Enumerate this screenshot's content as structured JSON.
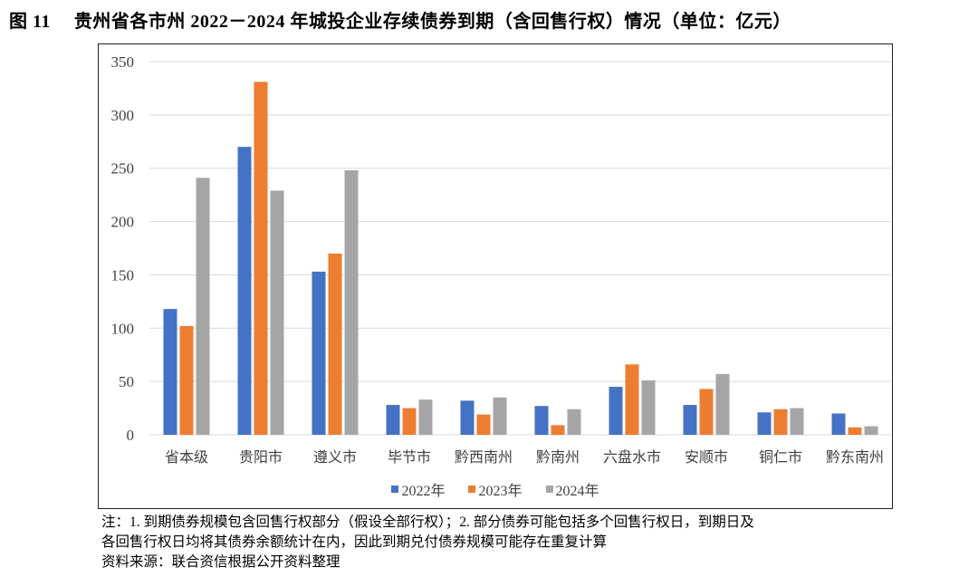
{
  "figure": {
    "label": "图 11",
    "title": "贵州省各市州 2022－2024 年城投企业存续债券到期（含回售行权）情况（单位：亿元）"
  },
  "chart_data": {
    "type": "bar",
    "title": "贵州省各市州 2022－2024 年城投企业存续债券到期（含回售行权）情况",
    "unit": "亿元",
    "categories": [
      "省本级",
      "贵阳市",
      "遵义市",
      "毕节市",
      "黔西南州",
      "黔南州",
      "六盘水市",
      "安顺市",
      "铜仁市",
      "黔东南州"
    ],
    "series": [
      {
        "name": "2022年",
        "color": "#4472C4",
        "values": [
          118,
          270,
          153,
          28,
          32,
          27,
          45,
          28,
          21,
          20
        ]
      },
      {
        "name": "2023年",
        "color": "#ED7D31",
        "values": [
          102,
          331,
          170,
          25,
          19,
          9,
          66,
          43,
          24,
          7
        ]
      },
      {
        "name": "2024年",
        "color": "#A5A5A5",
        "values": [
          241,
          229,
          248,
          33,
          35,
          24,
          51,
          57,
          25,
          8
        ]
      }
    ],
    "xlabel": "",
    "ylabel": "",
    "ylim": [
      0,
      350
    ],
    "yticks": [
      0,
      50,
      100,
      150,
      200,
      250,
      300,
      350
    ],
    "grid": true,
    "legend_position": "bottom",
    "gridline_color": "#D9D9D9",
    "axis_text_color": "#404040"
  },
  "notes": {
    "line1": "注：1. 到期债券规模包含回售行权部分（假设全部行权）；2. 部分债券可能包括多个回售行权日，到期日及",
    "line2": "各回售行权日均将其债券余额统计在内，因此到期兑付债券规模可能存在重复计算",
    "source": "资料来源：联合资信根据公开资料整理"
  }
}
